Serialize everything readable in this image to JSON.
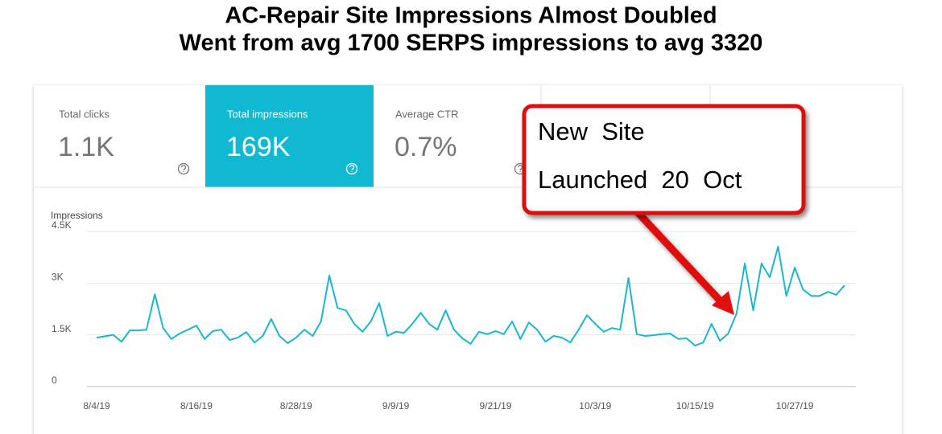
{
  "header": {
    "title_line1": "AC-Repair Site Impressions Almost Doubled",
    "title_line2": "Went from avg 1700 SERPS impressions to avg 3320"
  },
  "metrics": [
    {
      "label": "Total clicks",
      "value": "1.1K"
    },
    {
      "label": "Total impressions",
      "value": "169K"
    },
    {
      "label": "Average CTR",
      "value": "0.7%"
    }
  ],
  "callout": {
    "line1": "New  Site",
    "line2": "Launched  20  Oct"
  },
  "chart_data": {
    "type": "line",
    "y_label": "Impressions",
    "color": "#1ab7cf",
    "grid": true,
    "ylim": [
      0,
      4500
    ],
    "yticks": [
      0,
      {
        "value": 1500,
        "label": "1.5K"
      },
      {
        "value": 3000,
        "label": "3K"
      },
      {
        "value": 4500,
        "label": "4.5K"
      }
    ],
    "categories": [
      "8/4/19",
      null,
      null,
      null,
      null,
      null,
      null,
      null,
      null,
      null,
      null,
      null,
      "8/16/19",
      null,
      null,
      null,
      null,
      null,
      null,
      null,
      null,
      null,
      null,
      null,
      "8/28/19",
      null,
      null,
      null,
      null,
      null,
      null,
      null,
      null,
      null,
      null,
      null,
      "9/9/19",
      null,
      null,
      null,
      null,
      null,
      null,
      null,
      null,
      null,
      null,
      null,
      "9/21/19",
      null,
      null,
      null,
      null,
      null,
      null,
      null,
      null,
      null,
      null,
      null,
      "10/3/19",
      null,
      null,
      null,
      null,
      null,
      null,
      null,
      null,
      null,
      null,
      null,
      "10/15/19",
      null,
      null,
      null,
      null,
      null,
      null,
      null,
      null,
      null,
      null,
      null,
      "10/27/19",
      null,
      null,
      null,
      null,
      null,
      null
    ],
    "values": [
      1420,
      1460,
      1500,
      1300,
      1630,
      1630,
      1650,
      2680,
      1700,
      1380,
      1540,
      1650,
      1770,
      1380,
      1610,
      1650,
      1350,
      1420,
      1580,
      1280,
      1470,
      1960,
      1470,
      1260,
      1420,
      1650,
      1470,
      1890,
      3220,
      2280,
      2210,
      1820,
      1590,
      1890,
      2420,
      1470,
      1590,
      1560,
      1820,
      2140,
      1820,
      1650,
      2210,
      1650,
      1400,
      1240,
      1590,
      1520,
      1610,
      1520,
      1890,
      1380,
      1860,
      1650,
      1300,
      1470,
      1420,
      1280,
      1650,
      2070,
      1820,
      1590,
      1700,
      1650,
      3150,
      1520,
      1470,
      1490,
      1520,
      1540,
      1380,
      1400,
      1190,
      1280,
      1820,
      1330,
      1540,
      2120,
      3570,
      2210,
      3570,
      3170,
      4060,
      2630,
      3450,
      2820,
      2630,
      2630,
      2750,
      2660,
      2940
    ]
  }
}
